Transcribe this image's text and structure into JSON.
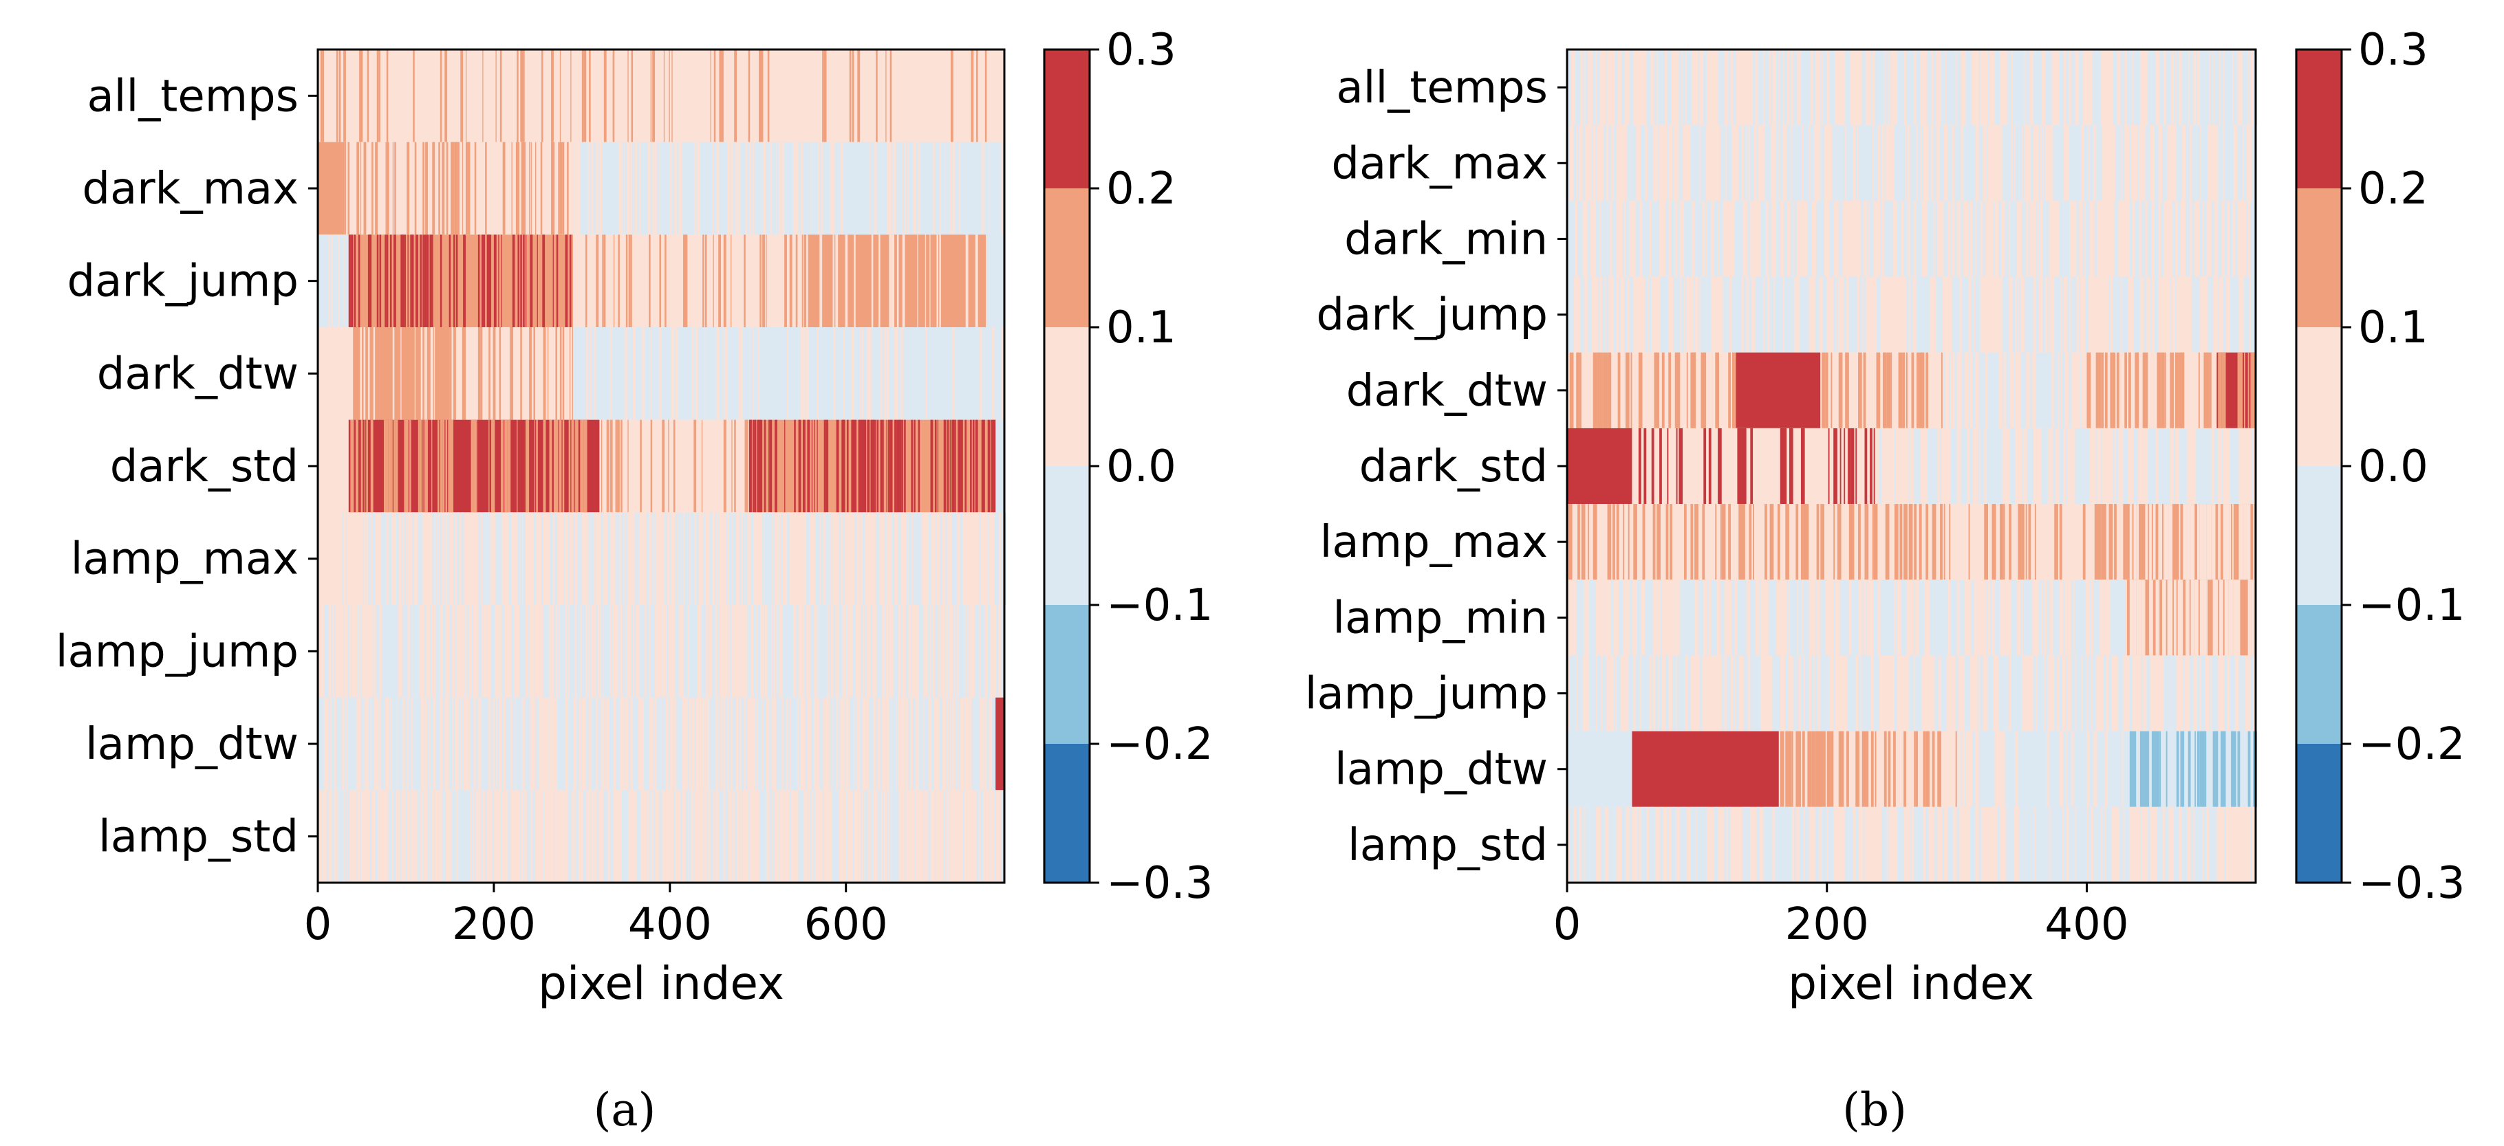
{
  "colors": {
    "colorbar": [
      "#2e75b6",
      "#8ac1dd",
      "#dde9f2",
      "#fbe1d6",
      "#f0a07d",
      "#c6383d"
    ],
    "axis": "#000000"
  },
  "chart_data": [
    {
      "type": "heatmap",
      "panel": "a",
      "caption": "(a)",
      "title": "",
      "xlabel": "pixel index",
      "ylabel": "",
      "xlim": [
        0,
        780
      ],
      "xticks": [
        0,
        200,
        400,
        600
      ],
      "xtick_labels": [
        "0",
        "200",
        "400",
        "600"
      ],
      "rows": [
        "all_temps",
        "dark_max",
        "dark_jump",
        "dark_dtw",
        "dark_std",
        "lamp_max",
        "lamp_jump",
        "lamp_dtw",
        "lamp_std"
      ],
      "color_levels": [
        -0.3,
        -0.2,
        -0.1,
        0.0,
        0.1,
        0.2,
        0.3
      ],
      "colorbar_tick_labels": [
        "0.3",
        "0.2",
        "0.1",
        "0.0",
        "−0.1",
        "−0.2",
        "−0.3"
      ],
      "seed": 11,
      "row_profiles": [
        {
          "base": 0.05,
          "segments": [
            [
              0,
              780,
              0.05,
              0.09,
              0.15
            ]
          ]
        },
        {
          "base": 0.05,
          "segments": [
            [
              0,
              30,
              0.15,
              0,
              0
            ],
            [
              30,
              290,
              0.05,
              0.2,
              0.12
            ],
            [
              290,
              290,
              0.05,
              0,
              0
            ],
            [
              290,
              780,
              -0.05,
              0.15,
              0.05
            ]
          ]
        },
        {
          "base": 0.05,
          "segments": [
            [
              0,
              35,
              -0.05,
              0.1,
              0.05
            ],
            [
              35,
              290,
              0.15,
              0.25,
              0.25
            ],
            [
              290,
              550,
              0.05,
              0.12,
              0.15
            ],
            [
              550,
              760,
              0.15,
              0.15,
              0.05
            ],
            [
              760,
              780,
              -0.05,
              0,
              0
            ]
          ]
        },
        {
          "base": 0.05,
          "segments": [
            [
              0,
              40,
              0.05,
              0,
              0
            ],
            [
              40,
              150,
              0.15,
              0.15,
              0.05
            ],
            [
              150,
              290,
              0.05,
              0.12,
              0.15
            ],
            [
              290,
              480,
              -0.05,
              0.12,
              0.05
            ],
            [
              480,
              780,
              -0.05,
              0.1,
              0.05
            ]
          ]
        },
        {
          "base": 0.05,
          "segments": [
            [
              0,
              35,
              0.05,
              0,
              0
            ],
            [
              35,
              320,
              0.25,
              0.25,
              0.15
            ],
            [
              320,
              490,
              0.05,
              0.15,
              0.15
            ],
            [
              490,
              770,
              0.15,
              0.3,
              0.25
            ],
            [
              770,
              780,
              -0.05,
              0,
              0
            ]
          ]
        },
        {
          "base": 0.05,
          "segments": [
            [
              0,
              780,
              0.05,
              0.2,
              -0.05
            ]
          ]
        },
        {
          "base": -0.05,
          "segments": [
            [
              0,
              780,
              -0.05,
              0.35,
              0.05
            ]
          ]
        },
        {
          "base": -0.05,
          "segments": [
            [
              0,
              770,
              -0.05,
              0.3,
              0.05
            ],
            [
              770,
              780,
              0.25,
              0,
              0
            ]
          ]
        },
        {
          "base": -0.05,
          "segments": [
            [
              0,
              780,
              -0.05,
              0.4,
              0.05
            ]
          ]
        }
      ]
    },
    {
      "type": "heatmap",
      "panel": "b",
      "caption": "(b)",
      "title": "",
      "xlabel": "pixel index",
      "ylabel": "",
      "xlim": [
        0,
        530
      ],
      "xticks": [
        0,
        200,
        400
      ],
      "xtick_labels": [
        "0",
        "200",
        "400"
      ],
      "rows": [
        "all_temps",
        "dark_max",
        "dark_min",
        "dark_jump",
        "dark_dtw",
        "dark_std",
        "lamp_max",
        "lamp_min",
        "lamp_jump",
        "lamp_dtw",
        "lamp_std"
      ],
      "color_levels": [
        -0.3,
        -0.2,
        -0.1,
        0.0,
        0.1,
        0.2,
        0.3
      ],
      "colorbar_tick_labels": [
        "0.3",
        "0.2",
        "0.1",
        "0.0",
        "−0.1",
        "−0.2",
        "−0.3"
      ],
      "seed": 29,
      "row_profiles": [
        {
          "base": 0.05,
          "segments": [
            [
              0,
              530,
              0.05,
              0.3,
              -0.05
            ]
          ]
        },
        {
          "base": 0.05,
          "segments": [
            [
              0,
              530,
              0.05,
              0.3,
              -0.05
            ]
          ]
        },
        {
          "base": 0.05,
          "segments": [
            [
              0,
              530,
              0.05,
              0.3,
              -0.05
            ]
          ]
        },
        {
          "base": 0.05,
          "segments": [
            [
              0,
              530,
              0.05,
              0.3,
              -0.05
            ]
          ]
        },
        {
          "base": 0.05,
          "segments": [
            [
              0,
              130,
              0.05,
              0.25,
              0.15
            ],
            [
              130,
              195,
              0.25,
              0,
              0
            ],
            [
              195,
              290,
              0.05,
              0.2,
              0.15
            ],
            [
              290,
              400,
              -0.05,
              0.2,
              0.05
            ],
            [
              400,
              500,
              0.05,
              0.25,
              0.15
            ],
            [
              500,
              530,
              0.25,
              0.4,
              0.15
            ]
          ]
        },
        {
          "base": 0.05,
          "segments": [
            [
              0,
              50,
              0.25,
              0,
              0
            ],
            [
              50,
              240,
              0.05,
              0.15,
              0.25
            ],
            [
              240,
              530,
              -0.05,
              0.3,
              0.05
            ]
          ]
        },
        {
          "base": 0.05,
          "segments": [
            [
              0,
              430,
              0.05,
              0.25,
              0.15
            ],
            [
              430,
              530,
              0.15,
              0.45,
              0.05
            ]
          ]
        },
        {
          "base": 0.05,
          "segments": [
            [
              0,
              430,
              -0.05,
              0.3,
              0.05
            ],
            [
              430,
              530,
              0.15,
              0.4,
              0.05
            ]
          ]
        },
        {
          "base": 0.05,
          "segments": [
            [
              0,
              530,
              0.05,
              0.3,
              -0.05
            ]
          ]
        },
        {
          "base": -0.05,
          "segments": [
            [
              0,
              50,
              -0.05,
              0,
              0
            ],
            [
              50,
              163,
              0.25,
              0,
              0
            ],
            [
              163,
              300,
              0.05,
              0.3,
              0.15
            ],
            [
              300,
              430,
              -0.05,
              0.15,
              0.05
            ],
            [
              430,
              530,
              -0.05,
              0.35,
              -0.15
            ]
          ]
        },
        {
          "base": 0.05,
          "segments": [
            [
              0,
              530,
              0.05,
              0.3,
              -0.05
            ]
          ]
        }
      ]
    }
  ]
}
